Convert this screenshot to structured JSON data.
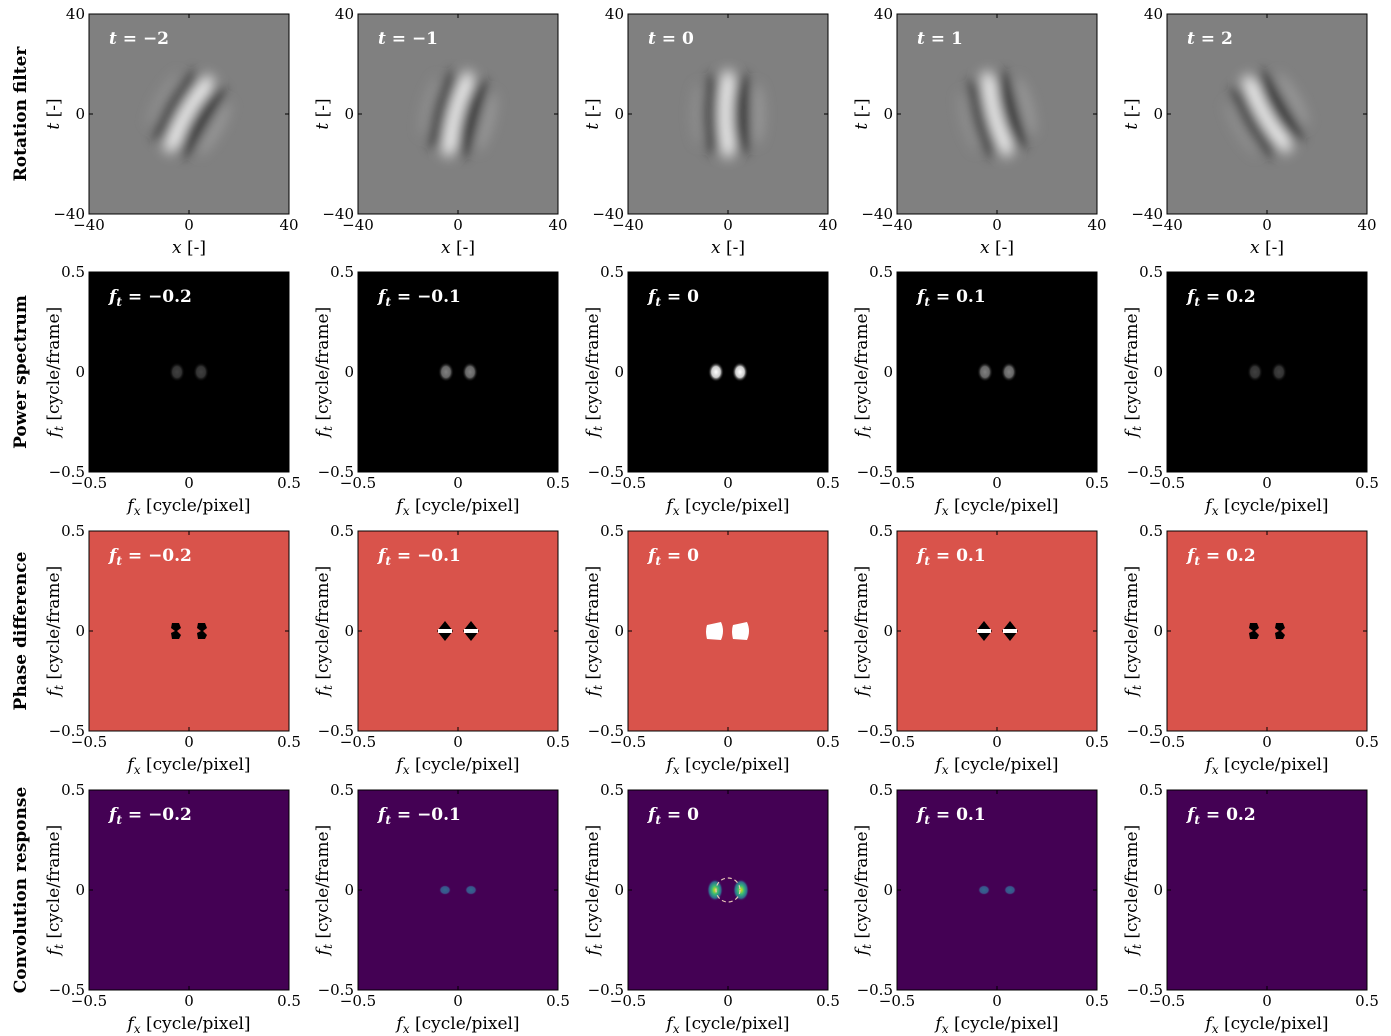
{
  "rows": [
    {
      "label": "Rotation filter",
      "kind": "gabor",
      "ylabel": "t [-]",
      "xlabel": "x [-]",
      "xticks": [
        "−40",
        "0",
        "40"
      ],
      "yticks": [
        "40",
        "0",
        "−40"
      ],
      "panels": [
        "t = −2",
        "t = −1",
        "t = 0",
        "t = 1",
        "t = 2"
      ]
    },
    {
      "label": "Power spectrum",
      "kind": "power",
      "ylabel": "f_t [cycle/frame]",
      "xlabel": "f_x [cycle/pixel]",
      "xticks": [
        "−0.5",
        "0",
        "0.5"
      ],
      "yticks": [
        "0.5",
        "0",
        "−0.5"
      ],
      "panels": [
        "f_t = −0.2",
        "f_t = −0.1",
        "f_t = 0",
        "f_t = 0.1",
        "f_t = 0.2"
      ]
    },
    {
      "label": "Phase difference",
      "kind": "phase",
      "ylabel": "f_t [cycle/frame]",
      "xlabel": "f_x [cycle/pixel]",
      "xticks": [
        "−0.5",
        "0",
        "0.5"
      ],
      "yticks": [
        "0.5",
        "0",
        "−0.5"
      ],
      "panels": [
        "f_t = −0.2",
        "f_t = −0.1",
        "f_t = 0",
        "f_t = 0.1",
        "f_t = 0.2"
      ]
    },
    {
      "label": "Convolution response",
      "kind": "conv",
      "ylabel": "f_t [cycle/frame]",
      "xlabel": "f_x [cycle/pixel]",
      "xticks": [
        "−0.5",
        "0",
        "0.5"
      ],
      "yticks": [
        "0.5",
        "0",
        "−0.5"
      ],
      "panels": [
        "f_t = −0.2",
        "f_t = −0.1",
        "f_t = 0",
        "f_t = 0.1",
        "f_t = 0.2"
      ]
    }
  ],
  "panel_params": {
    "t_values": [
      -2,
      -1,
      0,
      1,
      2
    ],
    "intensity": [
      0.25,
      0.5,
      1.0,
      0.5,
      0.25
    ]
  },
  "colors": {
    "phase_background": "#d9534b",
    "conv_background": "#440154",
    "power_background": "#000000",
    "gabor_background": "#808080"
  }
}
